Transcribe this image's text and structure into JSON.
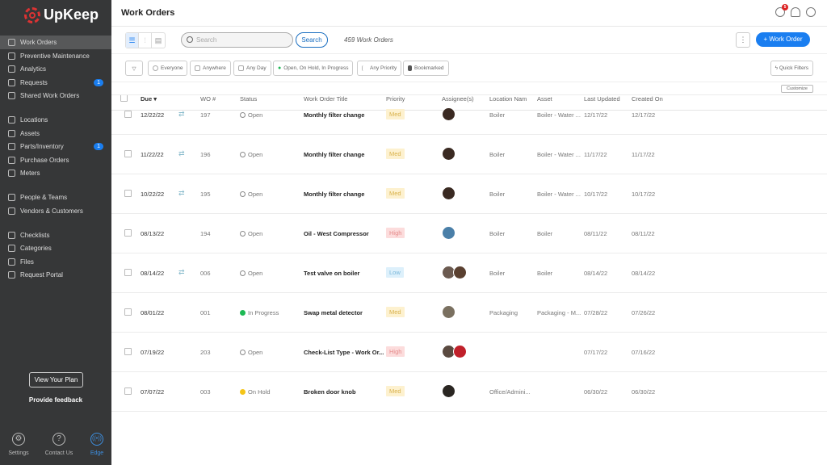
{
  "app": {
    "logo": "UpKeep",
    "page_title": "Work Orders",
    "notification_count": "5"
  },
  "sidebar": {
    "items": [
      {
        "label": "Work Orders",
        "active": true
      },
      {
        "label": "Preventive Maintenance"
      },
      {
        "label": "Analytics"
      },
      {
        "label": "Requests",
        "badge": "1"
      },
      {
        "label": "Shared Work Orders"
      },
      {
        "label": "Locations"
      },
      {
        "label": "Assets"
      },
      {
        "label": "Parts/Inventory",
        "badge": "1"
      },
      {
        "label": "Purchase Orders"
      },
      {
        "label": "Meters"
      },
      {
        "label": "People & Teams"
      },
      {
        "label": "Vendors & Customers"
      },
      {
        "label": "Checklists"
      },
      {
        "label": "Categories"
      },
      {
        "label": "Files"
      },
      {
        "label": "Request Portal"
      }
    ],
    "view_plan": "View Your Plan",
    "feedback": "Provide feedback",
    "footer": [
      {
        "label": "Settings",
        "icon": "gear-icon"
      },
      {
        "label": "Contact Us",
        "icon": "question-icon"
      },
      {
        "label": "Edge",
        "icon": "signal-icon"
      }
    ]
  },
  "toolbar": {
    "search_placeholder": "Search",
    "search_button": "Search",
    "count": "459 Work Orders",
    "new_button": "+ Work Order",
    "more": "⋮"
  },
  "filters": {
    "chips": [
      "Everyone",
      "Anywhere",
      "Any Day",
      "Open, On Hold, In Progress",
      "Any Priority",
      "Bookmarked"
    ],
    "quick_filters": "Quick Filters"
  },
  "table": {
    "customize": "Customize",
    "columns": [
      "Due",
      "WO #",
      "Status",
      "Work Order Title",
      "Priority",
      "Assignee(s)",
      "Location Nam",
      "Asset",
      "Last Updated",
      "Created On"
    ],
    "rows": [
      {
        "due": "12/22/22",
        "repeat": true,
        "wo": "197",
        "status": "Open",
        "title": "Monthly filter change",
        "priority": "Med",
        "assignees": [
          "#3a2a22"
        ],
        "location": "Boiler",
        "asset": "Boiler - Water ...",
        "updated": "12/17/22",
        "created": "12/17/22"
      },
      {
        "due": "11/22/22",
        "repeat": true,
        "wo": "196",
        "status": "Open",
        "title": "Monthly filter change",
        "priority": "Med",
        "assignees": [
          "#3a2a22"
        ],
        "location": "Boiler",
        "asset": "Boiler - Water ...",
        "updated": "11/17/22",
        "created": "11/17/22"
      },
      {
        "due": "10/22/22",
        "repeat": true,
        "wo": "195",
        "status": "Open",
        "title": "Monthly filter change",
        "priority": "Med",
        "assignees": [
          "#3a2a22"
        ],
        "location": "Boiler",
        "asset": "Boiler - Water ...",
        "updated": "10/17/22",
        "created": "10/17/22"
      },
      {
        "due": "08/13/22",
        "repeat": false,
        "wo": "194",
        "status": "Open",
        "title": "Oil - West Compressor",
        "priority": "High",
        "assignees": [
          "#4a7fa8"
        ],
        "location": "Boiler",
        "asset": "Boiler",
        "updated": "08/11/22",
        "created": "08/11/22"
      },
      {
        "due": "08/14/22",
        "repeat": true,
        "wo": "006",
        "status": "Open",
        "title": "Test valve on boiler",
        "priority": "Low",
        "assignees": [
          "#6b5a50",
          "#5a4030"
        ],
        "location": "Boiler",
        "asset": "Boiler",
        "updated": "08/14/22",
        "created": "08/14/22"
      },
      {
        "due": "08/01/22",
        "repeat": false,
        "wo": "001",
        "status": "In Progress",
        "title": "Swap metal detector",
        "priority": "Med",
        "assignees": [
          "#7a7060"
        ],
        "location": "Packaging",
        "asset": "Packaging - M...",
        "updated": "07/28/22",
        "created": "07/26/22"
      },
      {
        "due": "07/19/22",
        "repeat": false,
        "wo": "203",
        "status": "Open",
        "title": "Check-List Type - Work Or...",
        "priority": "High",
        "assignees": [
          "#5a4a40",
          "#c0202a"
        ],
        "location": "",
        "asset": "",
        "updated": "07/17/22",
        "created": "07/16/22"
      },
      {
        "due": "07/07/22",
        "repeat": false,
        "wo": "003",
        "status": "On Hold",
        "title": "Broken door knob",
        "priority": "Med",
        "assignees": [
          "#2a2622"
        ],
        "location": "Office/Admini...",
        "asset": "",
        "updated": "06/30/22",
        "created": "06/30/22"
      }
    ]
  },
  "colors": {
    "accent": "#1a7ef0",
    "in_progress": "#1db954",
    "on_hold": "#f5c518",
    "logo": "#d33333"
  }
}
